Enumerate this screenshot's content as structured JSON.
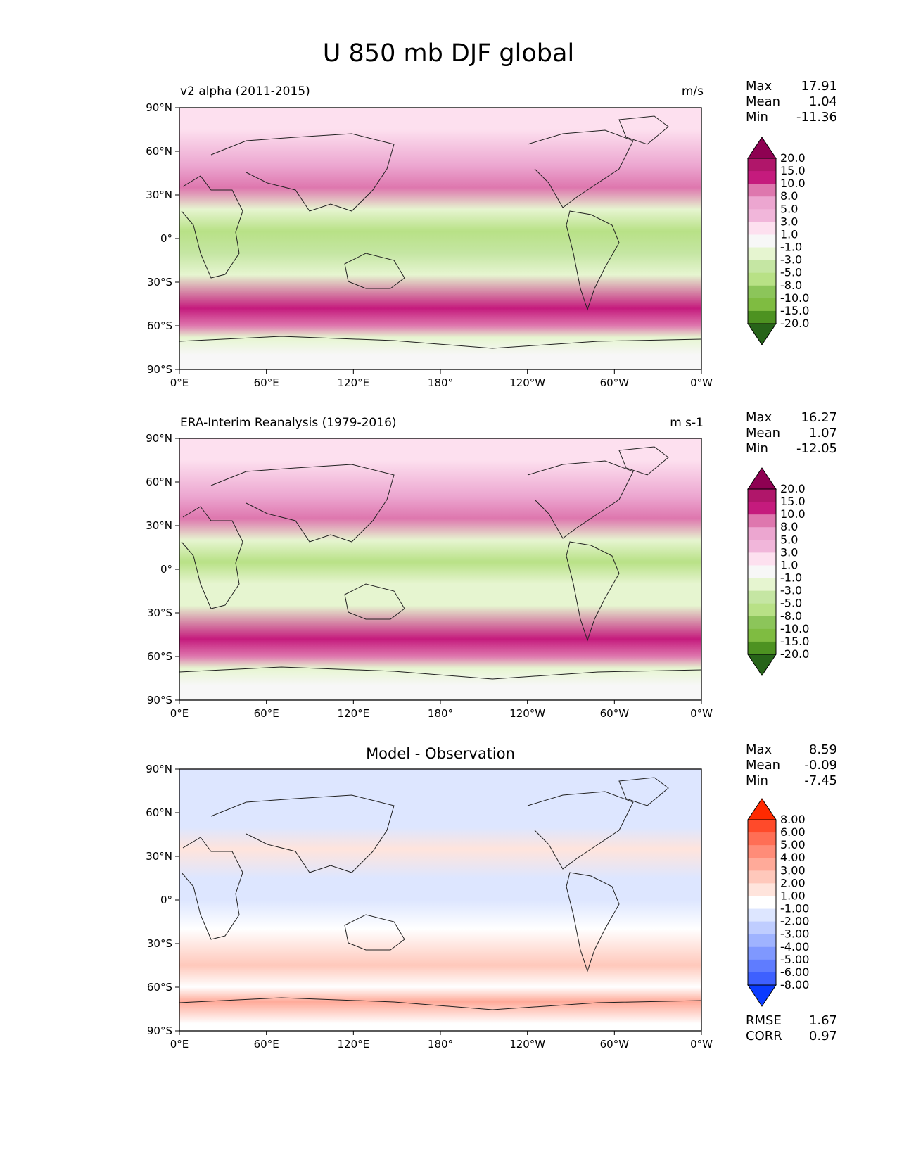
{
  "title": "U 850 mb DJF global",
  "panels": [
    {
      "title": "v2 alpha (2011-2015)",
      "units": "m/s",
      "stats": {
        "max_label": "Max",
        "max": "17.91",
        "mean_label": "Mean",
        "mean": "1.04",
        "min_label": "Min",
        "min": "-11.36"
      }
    },
    {
      "title": "ERA-Interim Reanalysis (1979-2016)",
      "units": "m s-1",
      "stats": {
        "max_label": "Max",
        "max": "16.27",
        "mean_label": "Mean",
        "mean": "1.07",
        "min_label": "Min",
        "min": "-12.05"
      }
    },
    {
      "title": "Model - Observation",
      "stats": {
        "max_label": "Max",
        "max": "8.59",
        "mean_label": "Mean",
        "mean": "-0.09",
        "min_label": "Min",
        "min": "-7.45",
        "rmse_label": "RMSE",
        "rmse": "1.67",
        "corr_label": "CORR",
        "corr": "0.97"
      }
    }
  ],
  "chart_data": [
    {
      "type": "heatmap",
      "title": "v2 alpha (2011-2015)",
      "units": "m/s",
      "x_ticks": [
        "0°E",
        "60°E",
        "120°E",
        "180°",
        "120°W",
        "60°W",
        "0°W"
      ],
      "y_ticks": [
        "90°N",
        "60°N",
        "30°N",
        "0°",
        "30°S",
        "60°S",
        "90°S"
      ],
      "colorbar_levels": [
        "20.0",
        "15.0",
        "10.0",
        "8.0",
        "5.0",
        "3.0",
        "1.0",
        "-1.0",
        "-3.0",
        "-5.0",
        "-8.0",
        "-10.0",
        "-15.0",
        "-20.0"
      ],
      "colormap": "PiYG_r",
      "bands": [
        {
          "lat": 75,
          "value": 1
        },
        {
          "lat": 50,
          "value": 7
        },
        {
          "lat": 35,
          "value": 9
        },
        {
          "lat": 20,
          "value": -2
        },
        {
          "lat": 5,
          "value": -7
        },
        {
          "lat": -10,
          "value": -4
        },
        {
          "lat": -25,
          "value": -3
        },
        {
          "lat": -48,
          "value": 14
        },
        {
          "lat": -60,
          "value": 9
        },
        {
          "lat": -68,
          "value": -2
        },
        {
          "lat": -80,
          "value": 0
        }
      ]
    },
    {
      "type": "heatmap",
      "title": "ERA-Interim Reanalysis (1979-2016)",
      "units": "m s-1",
      "x_ticks": [
        "0°E",
        "60°E",
        "120°E",
        "180°",
        "120°W",
        "60°W",
        "0°W"
      ],
      "y_ticks": [
        "90°N",
        "60°N",
        "30°N",
        "0°",
        "30°S",
        "60°S",
        "90°S"
      ],
      "colorbar_levels": [
        "20.0",
        "15.0",
        "10.0",
        "8.0",
        "5.0",
        "3.0",
        "1.0",
        "-1.0",
        "-3.0",
        "-5.0",
        "-8.0",
        "-10.0",
        "-15.0",
        "-20.0"
      ],
      "colormap": "PiYG_r",
      "bands": [
        {
          "lat": 75,
          "value": 2
        },
        {
          "lat": 50,
          "value": 6
        },
        {
          "lat": 35,
          "value": 8
        },
        {
          "lat": 20,
          "value": -2
        },
        {
          "lat": 5,
          "value": -6
        },
        {
          "lat": -10,
          "value": -3
        },
        {
          "lat": -25,
          "value": -3
        },
        {
          "lat": -48,
          "value": 13
        },
        {
          "lat": -60,
          "value": 8
        },
        {
          "lat": -68,
          "value": -3
        },
        {
          "lat": -80,
          "value": 0
        }
      ]
    },
    {
      "type": "heatmap",
      "title": "Model - Observation",
      "x_ticks": [
        "0°E",
        "60°E",
        "120°E",
        "180°",
        "120°W",
        "60°W",
        "0°W"
      ],
      "y_ticks": [
        "90°N",
        "60°N",
        "30°N",
        "0°",
        "30°S",
        "60°S",
        "90°S"
      ],
      "colorbar_levels": [
        "8.00",
        "6.00",
        "5.00",
        "4.00",
        "3.00",
        "2.00",
        "1.00",
        "-1.00",
        "-2.00",
        "-3.00",
        "-4.00",
        "-5.00",
        "-6.00",
        "-8.00"
      ],
      "colormap": "bwr",
      "bands": [
        {
          "lat": 75,
          "value": -1.5
        },
        {
          "lat": 50,
          "value": -2
        },
        {
          "lat": 35,
          "value": 1.5
        },
        {
          "lat": 15,
          "value": -1.5
        },
        {
          "lat": 0,
          "value": -2
        },
        {
          "lat": -20,
          "value": 0
        },
        {
          "lat": -45,
          "value": 2
        },
        {
          "lat": -60,
          "value": 0.5
        },
        {
          "lat": -70,
          "value": 3
        },
        {
          "lat": -85,
          "value": 0
        }
      ]
    }
  ]
}
